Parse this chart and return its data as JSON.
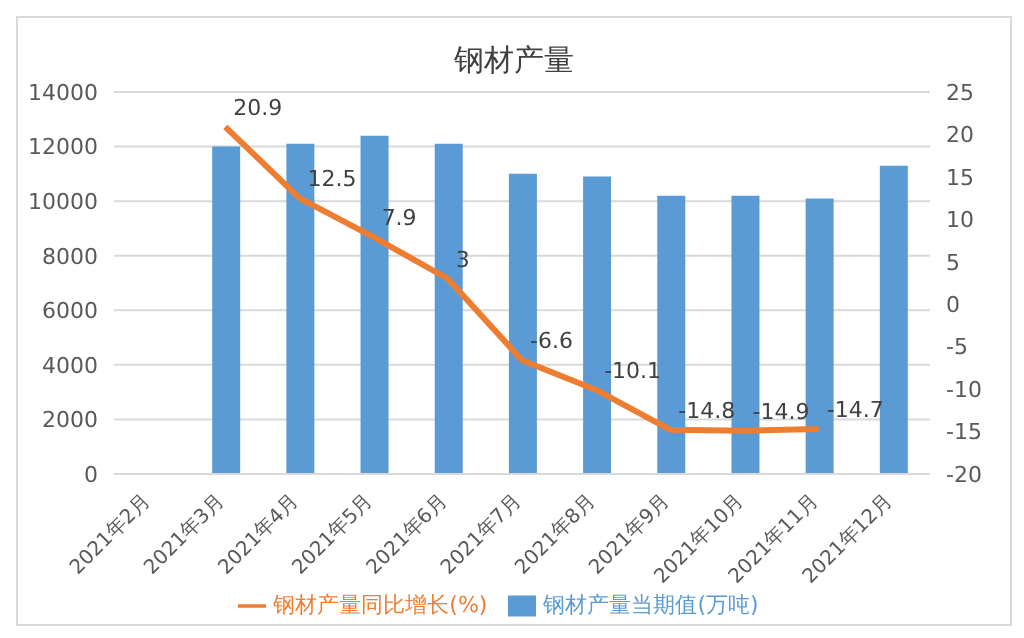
{
  "chart_data": {
    "type": "bar",
    "title": "钢材产量",
    "categories": [
      "2021年2月",
      "2021年3月",
      "2021年4月",
      "2021年5月",
      "2021年6月",
      "2021年7月",
      "2021年8月",
      "2021年9月",
      "2021年10月",
      "2021年11月",
      "2021年12月"
    ],
    "series": [
      {
        "name": "钢材产量当期值(万吨)",
        "color": "#5b9bd5",
        "values": [
          null,
          12000,
          12100,
          12400,
          12100,
          11000,
          10900,
          10200,
          10200,
          10100,
          11300
        ]
      },
      {
        "name": "钢材产量同比增长(%)",
        "type": "line",
        "axis": "y2",
        "color": "#ed7d31",
        "values": [
          null,
          20.9,
          12.5,
          7.9,
          3,
          -6.6,
          -10.1,
          -14.8,
          -14.9,
          -14.7,
          null
        ],
        "value_labels": [
          null,
          "20.9",
          "12.5",
          "7.9",
          "3",
          "-6.6",
          "-10.1",
          "-14.8",
          "-14.9",
          "-14.7",
          null
        ]
      }
    ],
    "ylim": [
      0,
      14000
    ],
    "yticks": [
      0,
      2000,
      4000,
      6000,
      8000,
      10000,
      12000,
      14000
    ],
    "y2lim": [
      -20,
      25
    ],
    "y2ticks": [
      -20,
      -15,
      -10,
      -5,
      0,
      5,
      10,
      15,
      20,
      25
    ],
    "grid": "y",
    "legend": "bottom",
    "marker": "none"
  }
}
